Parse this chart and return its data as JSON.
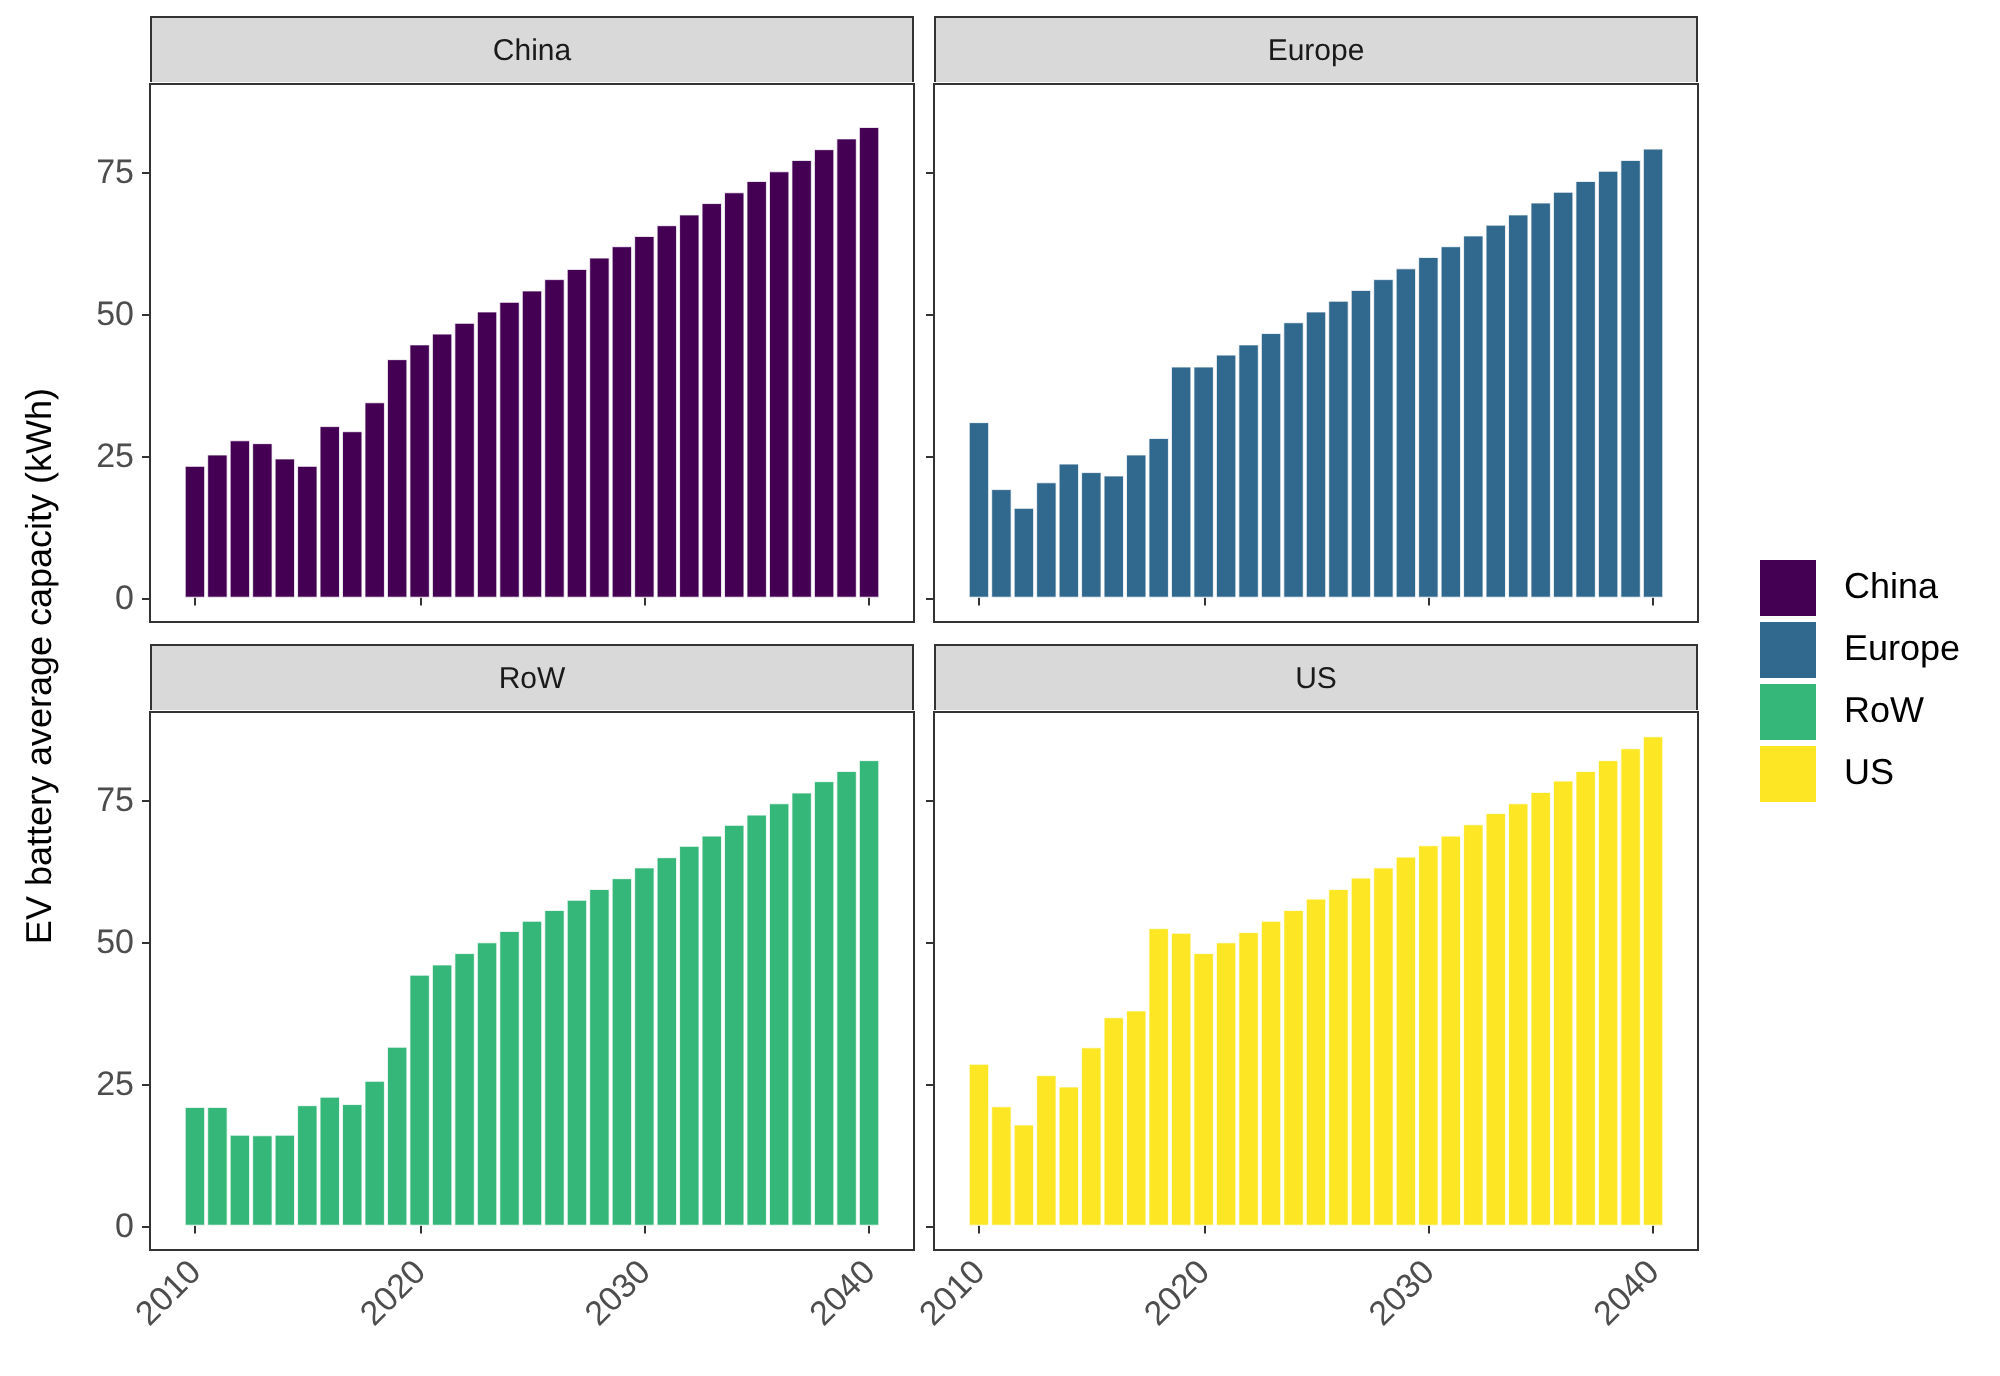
{
  "chart_data": [
    {
      "type": "bar",
      "title": "China",
      "ylabel": "EV battery average capacity (kWh)",
      "legend": "right",
      "x": [
        2010,
        2011,
        2012,
        2013,
        2014,
        2015,
        2016,
        2017,
        2018,
        2019,
        2020,
        2021,
        2022,
        2023,
        2024,
        2025,
        2026,
        2027,
        2028,
        2029,
        2030,
        2031,
        2032,
        2033,
        2034,
        2035,
        2036,
        2037,
        2038,
        2039,
        2040
      ],
      "series": [
        {
          "name": "China",
          "color": "#440154",
          "values": [
            23.2,
            25.2,
            27.7,
            27.2,
            24.5,
            23.2,
            30.2,
            29.3,
            34.4,
            42.0,
            44.6,
            46.5,
            48.4,
            50.4,
            52.1,
            54.1,
            56.1,
            57.9,
            59.9,
            61.9,
            63.7,
            65.6,
            67.5,
            69.5,
            71.4,
            73.4,
            75.1,
            77.1,
            79.0,
            80.9,
            82.9
          ]
        }
      ],
      "xlim": [
        2008,
        2042
      ],
      "xticks": [
        2010,
        2020,
        2030,
        2040
      ],
      "ylim": [
        -4.3,
        90.5
      ],
      "yticks": [
        0,
        25,
        50,
        75
      ],
      "tick_labels": "y",
      "grid": false
    },
    {
      "type": "bar",
      "title": "Europe",
      "legend": "right",
      "x": [
        2010,
        2011,
        2012,
        2013,
        2014,
        2015,
        2016,
        2017,
        2018,
        2019,
        2020,
        2021,
        2022,
        2023,
        2024,
        2025,
        2026,
        2027,
        2028,
        2029,
        2030,
        2031,
        2032,
        2033,
        2034,
        2035,
        2036,
        2037,
        2038,
        2039,
        2040
      ],
      "series": [
        {
          "name": "Europe",
          "color": "#31688e",
          "values": [
            30.9,
            19.1,
            15.8,
            20.3,
            23.6,
            22.1,
            21.5,
            25.2,
            28.1,
            40.7,
            40.7,
            42.8,
            44.6,
            46.6,
            48.5,
            50.4,
            52.3,
            54.2,
            56.1,
            58.0,
            60.0,
            61.9,
            63.8,
            65.7,
            67.5,
            69.6,
            71.5,
            73.4,
            75.2,
            77.1,
            79.1
          ]
        }
      ],
      "xlim": [
        2008,
        2042
      ],
      "xticks": [
        2010,
        2020,
        2030,
        2040
      ],
      "ylim": [
        -4.3,
        90.5
      ],
      "yticks": [
        0,
        25,
        50,
        75
      ],
      "tick_labels": false,
      "grid": false
    },
    {
      "type": "bar",
      "title": "RoW",
      "legend": "right",
      "x": [
        2010,
        2011,
        2012,
        2013,
        2014,
        2015,
        2016,
        2017,
        2018,
        2019,
        2020,
        2021,
        2022,
        2023,
        2024,
        2025,
        2026,
        2027,
        2028,
        2029,
        2030,
        2031,
        2032,
        2033,
        2034,
        2035,
        2036,
        2037,
        2038,
        2039,
        2040
      ],
      "series": [
        {
          "name": "RoW",
          "color": "#35b779",
          "values": [
            20.9,
            20.9,
            16.0,
            15.9,
            16.0,
            21.2,
            22.7,
            21.4,
            25.5,
            31.5,
            44.2,
            46.0,
            48.0,
            49.9,
            51.9,
            53.7,
            55.6,
            57.4,
            59.3,
            61.2,
            63.1,
            64.9,
            66.9,
            68.7,
            70.6,
            72.4,
            74.4,
            76.3,
            78.3,
            80.1,
            82.0
          ]
        }
      ],
      "xlim": [
        2008,
        2042
      ],
      "xticks": [
        2010,
        2020,
        2030,
        2040
      ],
      "ylim": [
        -4.3,
        90.5
      ],
      "yticks": [
        0,
        25,
        50,
        75
      ],
      "grid": false
    },
    {
      "type": "bar",
      "title": "US",
      "legend": "right",
      "x": [
        2010,
        2011,
        2012,
        2013,
        2014,
        2015,
        2016,
        2017,
        2018,
        2019,
        2020,
        2021,
        2022,
        2023,
        2024,
        2025,
        2026,
        2027,
        2028,
        2029,
        2030,
        2031,
        2032,
        2033,
        2034,
        2035,
        2036,
        2037,
        2038,
        2039,
        2040
      ],
      "series": [
        {
          "name": "US",
          "color": "#fde725",
          "values": [
            28.5,
            21.0,
            17.8,
            26.5,
            24.5,
            31.4,
            36.7,
            37.9,
            52.4,
            51.6,
            48.0,
            49.9,
            51.7,
            53.7,
            55.6,
            57.6,
            59.3,
            61.3,
            63.1,
            65.0,
            67.0,
            68.7,
            70.7,
            72.7,
            74.4,
            76.4,
            78.4,
            80.1,
            82.0,
            84.1,
            86.2
          ]
        }
      ],
      "xlim": [
        2008,
        2042
      ],
      "xticks": [
        2010,
        2020,
        2030,
        2040
      ],
      "ylim": [
        -4.3,
        90.5
      ],
      "yticks": [
        0,
        25,
        50,
        75
      ],
      "tick_labels": "x",
      "grid": false
    }
  ]
}
